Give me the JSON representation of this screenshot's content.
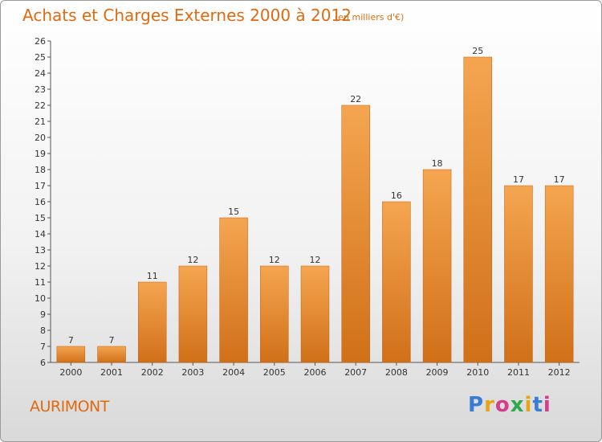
{
  "header": {
    "title": "Achats et Charges Externes 2000 à 2012",
    "unit": "(en milliers d'€)"
  },
  "footer": {
    "place": "AURIMONT",
    "brand_letters": [
      "P",
      "r",
      "o",
      "x",
      "i",
      "t",
      "i"
    ],
    "brand_colors": [
      "#3a7bd5",
      "#e8a317",
      "#d43c8c",
      "#2fa84f",
      "#e8a317",
      "#3a7bd5",
      "#d43c8c"
    ]
  },
  "chart_data": {
    "type": "bar",
    "title": "Achats et Charges Externes 2000 à 2012",
    "subtitle": "(en milliers d'€)",
    "categories": [
      "2000",
      "2001",
      "2002",
      "2003",
      "2004",
      "2005",
      "2006",
      "2007",
      "2008",
      "2009",
      "2010",
      "2011",
      "2012"
    ],
    "values": [
      7,
      7,
      11,
      12,
      15,
      12,
      12,
      22,
      16,
      18,
      25,
      17,
      17
    ],
    "ylim": [
      6,
      26
    ],
    "yticks": [
      6,
      7,
      8,
      9,
      10,
      11,
      12,
      13,
      14,
      15,
      16,
      17,
      18,
      19,
      20,
      21,
      22,
      23,
      24,
      25,
      26
    ],
    "grid": false,
    "data_labels": true,
    "bar_color_top": "#f5a550",
    "bar_color_bottom": "#d07018"
  }
}
